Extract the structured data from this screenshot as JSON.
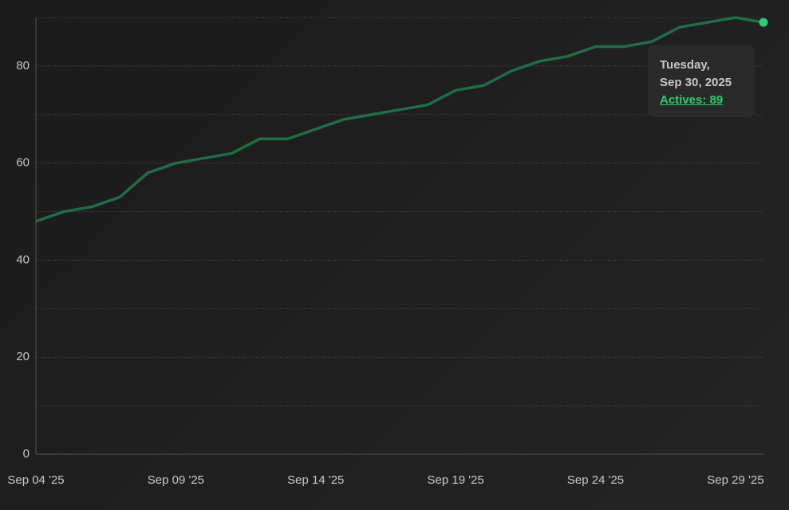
{
  "chart_data": {
    "type": "line",
    "categories": [
      "Sep 04 '25",
      null,
      null,
      null,
      null,
      "Sep 09 '25",
      null,
      null,
      null,
      null,
      "Sep 14 '25",
      null,
      null,
      null,
      null,
      "Sep 19 '25",
      null,
      null,
      null,
      null,
      "Sep 24 '25",
      null,
      null,
      null,
      null,
      "Sep 29 '25",
      null
    ],
    "series": [
      {
        "name": "Actives",
        "color": "#1f6e46",
        "values": [
          48,
          50,
          51,
          53,
          58,
          60,
          61,
          62,
          65,
          65,
          67,
          69,
          70,
          71,
          72,
          75,
          76,
          79,
          81,
          82,
          84,
          84,
          85,
          88,
          89,
          90,
          89
        ]
      }
    ],
    "highlight_color": "#2ecc71",
    "ylim": [
      0,
      90
    ],
    "yticks": [
      0,
      20,
      40,
      60,
      80
    ],
    "minor_yticks": [
      10,
      30,
      50,
      70,
      90
    ],
    "grid": true,
    "tooltip": {
      "day": "Tuesday,",
      "date": "Sep 30, 2025",
      "label": "Actives: 89"
    }
  }
}
